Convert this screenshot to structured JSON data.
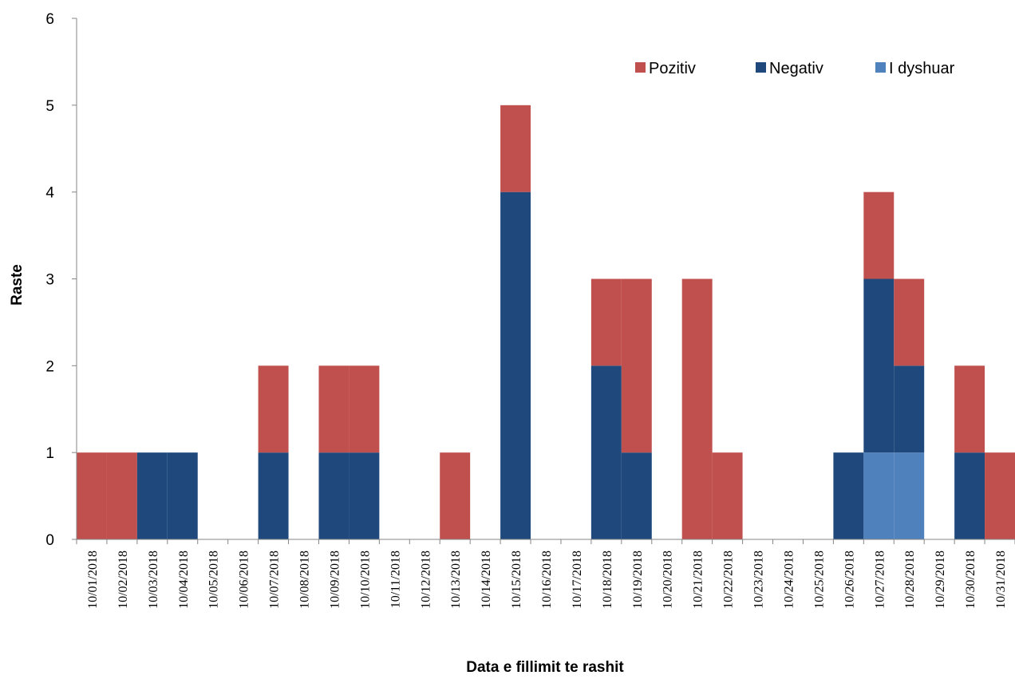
{
  "chart_data": {
    "type": "bar",
    "stacked": true,
    "title": "",
    "xlabel": "Data e fillimit te rashit",
    "ylabel": "Raste",
    "ylim": [
      0,
      6
    ],
    "yticks": [
      0,
      1,
      2,
      3,
      4,
      5,
      6
    ],
    "grid": false,
    "legend_position": "top-right",
    "categories": [
      "10/01/2018",
      "10/02/2018",
      "10/03/2018",
      "10/04/2018",
      "10/05/2018",
      "10/06/2018",
      "10/07/2018",
      "10/08/2018",
      "10/09/2018",
      "10/10/2018",
      "10/11/2018",
      "10/12/2018",
      "10/13/2018",
      "10/14/2018",
      "10/15/2018",
      "10/16/2018",
      "10/17/2018",
      "10/18/2018",
      "10/19/2018",
      "10/20/2018",
      "10/21/2018",
      "10/22/2018",
      "10/23/2018",
      "10/24/2018",
      "10/25/2018",
      "10/26/2018",
      "10/27/2018",
      "10/28/2018",
      "10/29/2018",
      "10/30/2018",
      "10/31/2018"
    ],
    "series": [
      {
        "name": "I dyshuar",
        "color": "#4f81bd",
        "values": [
          0,
          0,
          0,
          0,
          0,
          0,
          0,
          0,
          0,
          0,
          0,
          0,
          0,
          0,
          0,
          0,
          0,
          0,
          0,
          0,
          0,
          0,
          0,
          0,
          0,
          0,
          1,
          1,
          0,
          0,
          0
        ]
      },
      {
        "name": "Negativ",
        "color": "#1f497d",
        "values": [
          0,
          0,
          1,
          1,
          0,
          0,
          1,
          0,
          1,
          1,
          0,
          0,
          0,
          0,
          4,
          0,
          0,
          2,
          1,
          0,
          0,
          0,
          0,
          0,
          0,
          1,
          2,
          1,
          0,
          1,
          0
        ]
      },
      {
        "name": "Pozitiv",
        "color": "#c0504d",
        "values": [
          1,
          1,
          0,
          0,
          0,
          0,
          1,
          0,
          1,
          1,
          0,
          0,
          1,
          0,
          1,
          0,
          0,
          1,
          2,
          0,
          3,
          1,
          0,
          0,
          0,
          0,
          1,
          1,
          0,
          1,
          1
        ]
      }
    ],
    "legend_order": [
      "Pozitiv",
      "Negativ",
      "I dyshuar"
    ]
  }
}
